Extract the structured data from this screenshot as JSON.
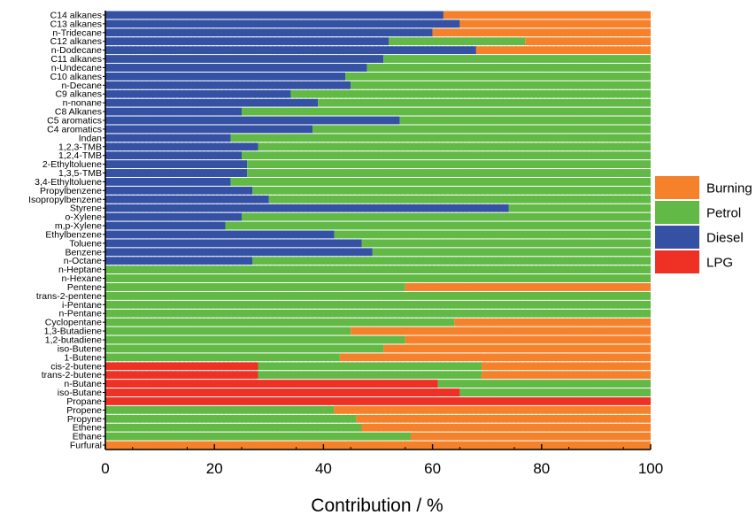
{
  "chart_data": {
    "type": "bar",
    "orientation": "horizontal",
    "stacked": true,
    "xlabel": "Contribution / %",
    "ylabel": "",
    "xlim": [
      0,
      100
    ],
    "xticks": [
      "0",
      "20",
      "40",
      "60",
      "80",
      "100"
    ],
    "legend_position": "right",
    "legend": [
      {
        "name": "Burning",
        "color": "#f5822a"
      },
      {
        "name": "Petrol",
        "color": "#62b946"
      },
      {
        "name": "Diesel",
        "color": "#3551a4"
      },
      {
        "name": "LPG",
        "color": "#ee3124"
      }
    ],
    "categories": [
      "C14 alkanes",
      "C13 alkanes",
      "n-Tridecane",
      "C12 alkanes",
      "n-Dodecane",
      "C11 alkanes",
      "n-Undecane",
      "C10 alkanes",
      "n-Decane",
      "C9 alkanes",
      "n-nonane",
      "C8 Alkanes",
      "C5 aromatics",
      "C4 aromatics",
      "Indan",
      "1,2,3-TMB",
      "1,2,4-TMB",
      "2-Ethyltoluene",
      "1,3,5-TMB",
      "3,4-Ethyltoluene",
      "Propylbenzene",
      "Isopropylbenzene",
      "Styrene",
      "o-Xylene",
      "m,p-Xylene",
      "Ethylbenzene",
      "Toluene",
      "Benzene",
      "n-Octane",
      "n-Heptane",
      "n-Hexane",
      "Pentene",
      "trans-2-pentene",
      "i-Pentane",
      "n-Pentane",
      "Cyclopentane",
      "1,3-Butadiene",
      "1,2-butadiene",
      "iso-Butene",
      "1-Butene",
      "cis-2-butene",
      "trans-2-butene",
      "n-Butane",
      "iso-Butane",
      "Propane",
      "Propene",
      "Propyne",
      "Ethene",
      "Ethane",
      "Furfural"
    ],
    "series": [
      {
        "name": "LPG",
        "values": [
          0,
          0,
          0,
          0,
          0,
          0,
          0,
          0,
          0,
          0,
          0,
          0,
          0,
          0,
          0,
          0,
          0,
          0,
          0,
          0,
          0,
          0,
          0,
          0,
          0,
          0,
          0,
          0,
          0,
          0,
          0,
          0,
          0,
          0,
          0,
          0,
          0,
          0,
          0,
          0,
          28,
          28,
          61,
          65,
          100,
          0,
          0,
          0,
          0,
          0
        ]
      },
      {
        "name": "Diesel",
        "values": [
          62,
          65,
          60,
          52,
          68,
          51,
          48,
          44,
          45,
          34,
          39,
          25,
          54,
          38,
          23,
          28,
          25,
          26,
          26,
          23,
          27,
          30,
          74,
          25,
          22,
          42,
          47,
          49,
          27,
          0,
          0,
          0,
          0,
          0,
          0,
          0,
          0,
          0,
          0,
          0,
          0,
          0,
          0,
          0,
          0,
          0,
          0,
          0,
          0,
          0
        ]
      },
      {
        "name": "Petrol",
        "values": [
          0,
          0,
          0,
          25,
          0,
          49,
          52,
          56,
          55,
          66,
          61,
          75,
          46,
          62,
          77,
          72,
          75,
          74,
          74,
          77,
          73,
          70,
          26,
          75,
          78,
          58,
          53,
          51,
          73,
          100,
          100,
          55,
          100,
          100,
          100,
          64,
          45,
          55,
          51,
          43,
          41,
          41,
          39,
          35,
          0,
          42,
          46,
          47,
          56,
          0
        ]
      },
      {
        "name": "Burning",
        "values": [
          38,
          35,
          40,
          23,
          32,
          0,
          0,
          0,
          0,
          0,
          0,
          0,
          0,
          0,
          0,
          0,
          0,
          0,
          0,
          0,
          0,
          0,
          0,
          0,
          0,
          0,
          0,
          0,
          0,
          0,
          0,
          45,
          0,
          0,
          0,
          36,
          55,
          45,
          49,
          57,
          31,
          31,
          0,
          0,
          0,
          58,
          54,
          53,
          44,
          100
        ]
      }
    ]
  }
}
